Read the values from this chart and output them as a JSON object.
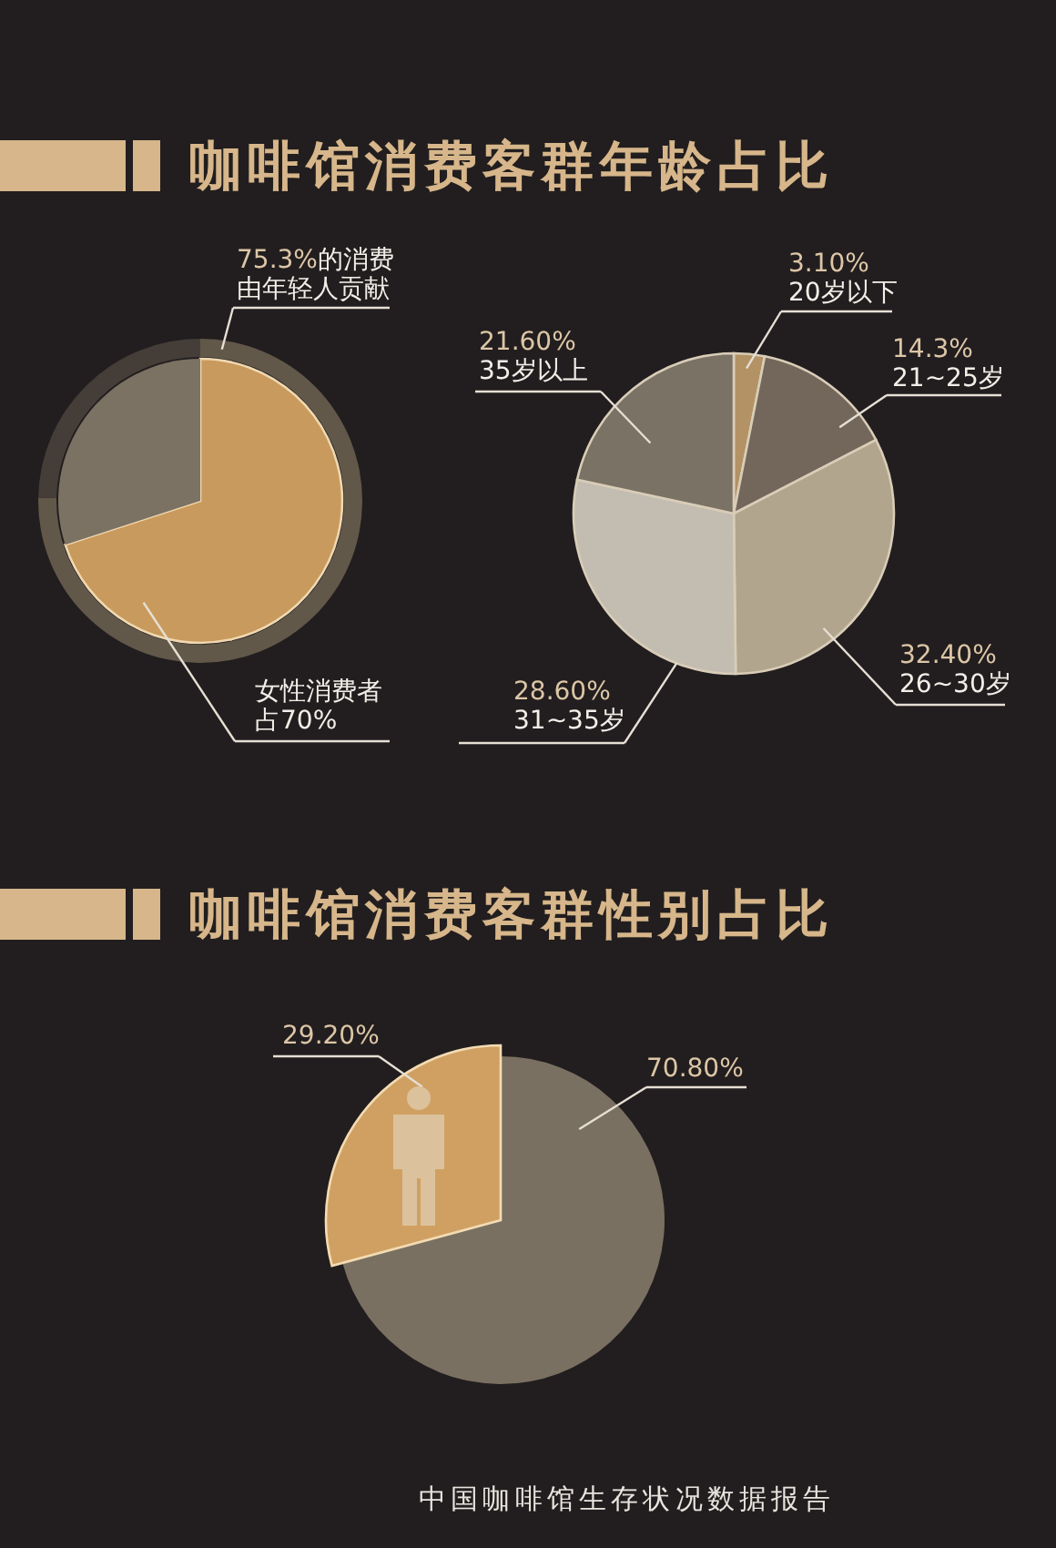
{
  "chart_data": [
    {
      "type": "pie",
      "title": "咖啡馆消费客群年龄占比",
      "categories": [
        null,
        null
      ],
      "series": [
        {
          "type": "donut",
          "values": [
            75.3,
            24.7
          ],
          "colors": [
            "#62584a",
            "#453e38"
          ],
          "value_labels": [
            "75.3%的消费由年轻人贡献",
            null
          ]
        },
        {
          "values": [
            70,
            30
          ],
          "colors": [
            "#c99a5d",
            "#7b7263"
          ],
          "value_labels": [
            "女性消费者占70%",
            null
          ]
        }
      ]
    },
    {
      "type": "pie",
      "categories": [
        "20岁以下",
        "21~25岁",
        "26~30岁",
        "31~35岁",
        "35岁以上"
      ],
      "values": [
        3.1,
        14.3,
        32.4,
        28.6,
        21.6
      ],
      "colors": [
        "#b39265",
        "#72675a",
        "#b2a58d",
        "#c3bcb1",
        "#7a7264"
      ],
      "value_labels": [
        "3.10%",
        "14.3%",
        "32.40%",
        "28.60%",
        "21.60%"
      ]
    },
    {
      "type": "pie",
      "title": "咖啡馆消费客群性别占比",
      "categories": [
        null,
        null
      ],
      "values": [
        70.8,
        29.2
      ],
      "colors": [
        "#7a7061",
        "#d0a063"
      ],
      "value_labels": [
        "70.80%",
        "29.20%"
      ],
      "annotations": [
        "中国咖啡馆生存状况数据报告"
      ]
    }
  ]
}
